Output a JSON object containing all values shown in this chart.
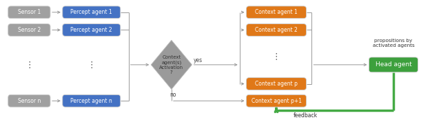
{
  "fig_width": 6.4,
  "fig_height": 1.74,
  "dpi": 100,
  "bg_color": "#ffffff",
  "sensor_color": "#a0a0a0",
  "percept_color": "#4472c4",
  "diamond_color": "#9a9a9a",
  "context_color": "#e07818",
  "head_color": "#3da03d",
  "arrow_color": "#999999",
  "feedback_color": "#44aa44",
  "sensors": [
    "Sensor 1",
    "Sensor 2",
    "Sensor n"
  ],
  "percepts": [
    "Percept agent 1",
    "Percept agent 2",
    "Percept agent n"
  ],
  "contexts": [
    "Context agent 1",
    "Context agent 2",
    "Context agent p",
    "Context agent p+1"
  ],
  "diamond_text": "Context\nagent(s)\nActivation\n?",
  "yes_label": "yes",
  "no_label": "no",
  "head_label": "Head agent",
  "propositions_text": "propositions by\nactivated agents",
  "feedback_text": "feedback"
}
